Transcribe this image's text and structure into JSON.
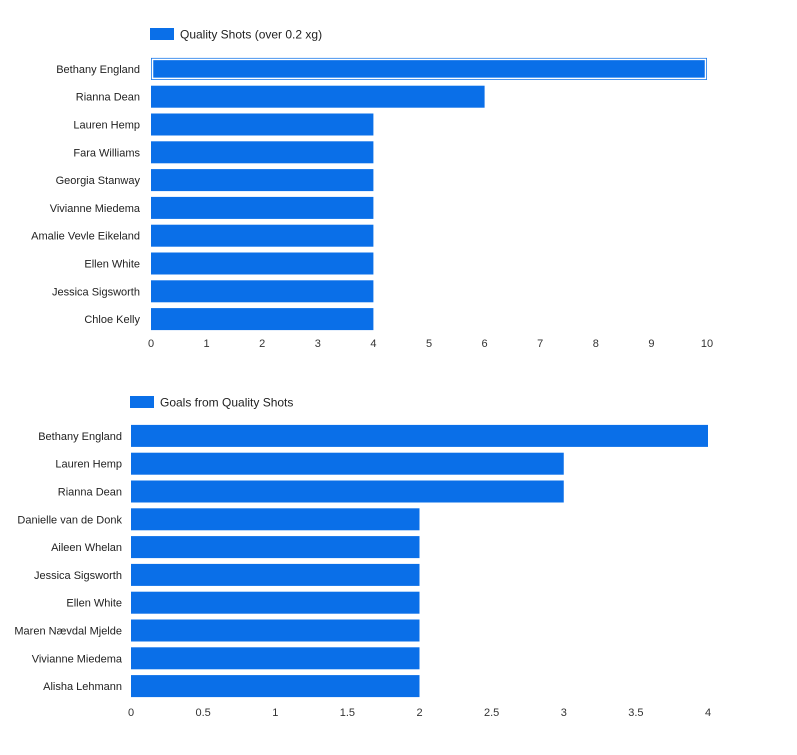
{
  "chart_data": [
    {
      "type": "bar",
      "orientation": "horizontal",
      "legend_position": "top-left",
      "grid": false,
      "series": [
        {
          "name": "Quality Shots (over 0.2 xg)",
          "values": [
            10,
            6,
            4,
            4,
            4,
            4,
            4,
            4,
            4,
            4
          ]
        }
      ],
      "categories": [
        "Bethany England",
        "Rianna Dean",
        "Lauren Hemp",
        "Fara Williams",
        "Georgia Stanway",
        "Vivianne Miedema",
        "Amalie Vevle Eikeland",
        "Ellen White",
        "Jessica Sigsworth",
        "Chloe Kelly"
      ],
      "xlim": [
        0,
        10
      ],
      "xticks": [
        0,
        1,
        2,
        3,
        4,
        5,
        6,
        7,
        8,
        9,
        10
      ],
      "highlighted_category": "Bethany England",
      "color": "#0a6fe8"
    },
    {
      "type": "bar",
      "orientation": "horizontal",
      "legend_position": "top-left",
      "grid": false,
      "series": [
        {
          "name": "Goals from Quality Shots",
          "values": [
            4,
            3,
            3,
            2,
            2,
            2,
            2,
            2,
            2,
            2
          ]
        }
      ],
      "categories": [
        "Bethany England",
        "Lauren Hemp",
        "Rianna Dean",
        "Danielle van de Donk",
        "Aileen Whelan",
        "Jessica Sigsworth",
        "Ellen White",
        "Maren Nævdal Mjelde",
        "Vivianne Miedema",
        "Alisha Lehmann"
      ],
      "xlim": [
        0,
        4
      ],
      "xticks": [
        0,
        0.5,
        1,
        1.5,
        2,
        2.5,
        3,
        3.5,
        4
      ],
      "color": "#0a6fe8"
    }
  ]
}
